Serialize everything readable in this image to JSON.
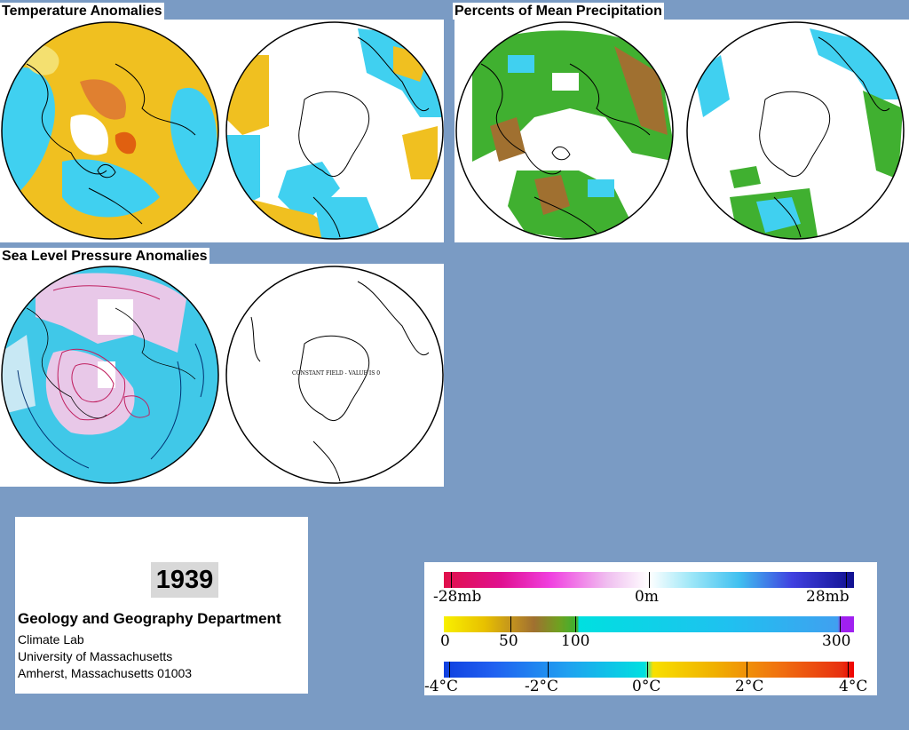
{
  "panels": {
    "temperature": {
      "title": "Temperature Anomalies"
    },
    "precipitation": {
      "title": "Percents of Mean Precipitation"
    },
    "pressure": {
      "title": "Sea Level Pressure Anomalies",
      "constant_text": "CONSTANT FIELD - VALUE IS 0"
    }
  },
  "info": {
    "year": "1939",
    "department": "Geology and Geography Department",
    "lab": "Climate Lab",
    "university": "University of Massachusetts",
    "address": "Amherst, Massachusetts 01003"
  },
  "legends": {
    "pressure": {
      "ticks": [
        "-28mb",
        "0m",
        "28mb"
      ]
    },
    "precip": {
      "ticks": [
        "0",
        "50",
        "100",
        "300"
      ]
    },
    "temperature": {
      "ticks": [
        "-4°C",
        "-2°C",
        "0°C",
        "2°C",
        "4°C"
      ]
    }
  },
  "colors": {
    "background": "#7a9bc4",
    "warm_anomaly": "#f0c020",
    "cool_anomaly": "#40d0f0",
    "wet": "#40b030",
    "dry": "#a07030",
    "high_pressure": "#e8c8e8",
    "low_pressure": "#40c8e8"
  }
}
